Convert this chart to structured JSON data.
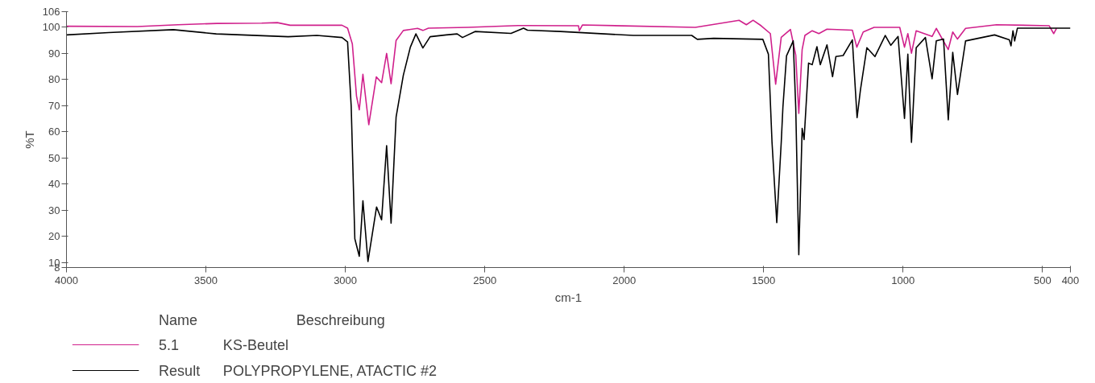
{
  "chart_data": {
    "type": "line",
    "xlabel": "cm-1",
    "ylabel": "%T",
    "xlim": [
      4000,
      400
    ],
    "xticks": [
      4000,
      3500,
      3000,
      2500,
      2000,
      1500,
      1000,
      500,
      400
    ],
    "ylim": [
      8,
      106
    ],
    "yticks": [
      8,
      10,
      20,
      30,
      40,
      50,
      60,
      70,
      80,
      90,
      100,
      106
    ],
    "grid": false,
    "legend": "bottom",
    "line_style": "solid",
    "marker": "none",
    "annotations": [
      "Name",
      "Beschreibung",
      "KS-Beutel",
      "POLYPROPYLENE, ATACTIC #2"
    ],
    "series": [
      {
        "name": "5.1",
        "color": "#d0208c",
        "x": [
          4000,
          3746,
          3600,
          3460,
          3300,
          3244,
          3198,
          3012,
          2992,
          2975,
          2960,
          2950,
          2937,
          2916,
          2889,
          2870,
          2852,
          2836,
          2818,
          2792,
          2741,
          2722,
          2702,
          2561,
          2380,
          2360,
          2164,
          2161,
          2150,
          1745,
          1588,
          1562,
          1538,
          1509,
          1476,
          1457,
          1437,
          1404,
          1385,
          1374,
          1362,
          1352,
          1326,
          1302,
          1273,
          1182,
          1166,
          1143,
          1104,
          1012,
          995,
          983,
          970,
          953,
          896,
          881,
          838,
          822,
          805,
          776,
          665,
          476,
          460,
          450
        ],
        "values": [
          100.4,
          100.3,
          101,
          101.5,
          101.6,
          101.8,
          100.8,
          100.8,
          99.7,
          93.7,
          73.7,
          68.4,
          82,
          62.7,
          81,
          78.8,
          90,
          78.4,
          95,
          98.8,
          99.6,
          98.8,
          99.7,
          100,
          100.7,
          100.7,
          100.6,
          98.7,
          100.9,
          100,
          102.7,
          101,
          102.7,
          100.6,
          97.6,
          78.2,
          96.2,
          99.2,
          89.4,
          67,
          91.5,
          96.9,
          98.7,
          97.6,
          99.3,
          98.9,
          92.4,
          98.2,
          100,
          100,
          92.4,
          97.6,
          90.1,
          98.7,
          96.5,
          99.6,
          91.5,
          98.2,
          95.5,
          99.6,
          101,
          100.6,
          97.6,
          99.6
        ]
      },
      {
        "name": "Result",
        "color": "#000000",
        "x": [
          4000,
          3849,
          3617,
          3463,
          3205,
          3102,
          3012,
          2992,
          2979,
          2966,
          2950,
          2937,
          2919,
          2888,
          2870,
          2852,
          2836,
          2818,
          2792,
          2767,
          2747,
          2722,
          2696,
          2638,
          2599,
          2580,
          2535,
          2406,
          2361,
          2347,
          2229,
          1967,
          1758,
          1738,
          1679,
          1503,
          1483,
          1470,
          1453,
          1437,
          1431,
          1418,
          1394,
          1385,
          1374,
          1362,
          1355,
          1339,
          1326,
          1309,
          1297,
          1273,
          1253,
          1241,
          1215,
          1182,
          1165,
          1153,
          1130,
          1101,
          1064,
          1044,
          1018,
          995,
          983,
          970,
          953,
          920,
          896,
          881,
          855,
          838,
          822,
          805,
          776,
          672,
          619,
          613,
          606,
          600,
          590,
          400
        ],
        "values": [
          97.1,
          98,
          99.1,
          97.5,
          96.4,
          96.9,
          96.1,
          94.4,
          69.7,
          19,
          12.3,
          33.6,
          10.3,
          31.2,
          26.3,
          54.7,
          25,
          65.7,
          81.7,
          92.4,
          97.5,
          92.1,
          96.4,
          97.1,
          97.5,
          96.1,
          98.4,
          97.7,
          99.7,
          98.9,
          98.4,
          96.9,
          96.9,
          95.4,
          95.8,
          95.4,
          89.7,
          55.9,
          25.2,
          55.9,
          69.4,
          89.1,
          94.8,
          69.4,
          12.9,
          61.3,
          57,
          86.3,
          85.7,
          92.6,
          85.7,
          93.3,
          81.1,
          88.8,
          89.2,
          95.2,
          65.4,
          76,
          92.2,
          88.8,
          96.9,
          93.1,
          96.5,
          65.1,
          89.7,
          55.9,
          92.2,
          96.1,
          80.3,
          94.8,
          95.5,
          64.6,
          90.4,
          74.3,
          94.8,
          97.1,
          95.2,
          92.9,
          98.7,
          94.8,
          99.7,
          99.7
        ]
      }
    ]
  }
}
